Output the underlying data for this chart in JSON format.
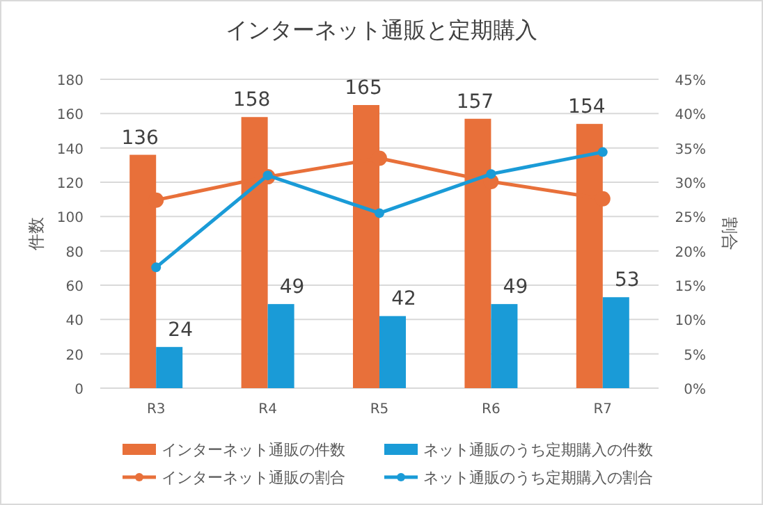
{
  "chart_data": {
    "type": "bar",
    "title": "インターネット通販と定期購入",
    "categories": [
      "R3",
      "R4",
      "R5",
      "R6",
      "R7"
    ],
    "ylabel": "件数",
    "y2label": "割合",
    "ylim": [
      0,
      180
    ],
    "yticks": [
      0,
      20,
      40,
      60,
      80,
      100,
      120,
      140,
      160,
      180
    ],
    "y2lim": [
      0,
      45
    ],
    "y2ticks": [
      {
        "value": 0,
        "label": "0%"
      },
      {
        "value": 5,
        "label": "5%"
      },
      {
        "value": 10,
        "label": "10%"
      },
      {
        "value": 15,
        "label": "15%"
      },
      {
        "value": 20,
        "label": "20%"
      },
      {
        "value": 25,
        "label": "25%"
      },
      {
        "value": 30,
        "label": "30%"
      },
      {
        "value": 35,
        "label": "35%"
      },
      {
        "value": 40,
        "label": "40%"
      },
      {
        "value": 45,
        "label": "45%"
      }
    ],
    "grid": "y",
    "legend": "bottom",
    "marker": "circle",
    "series": [
      {
        "name": "インターネット通販の件数",
        "color": "#e8703a",
        "values": [
          136,
          158,
          165,
          157,
          154
        ],
        "data_labels": true
      },
      {
        "name": "ネット通販のうち定期購入の件数",
        "color": "#1a9bd7",
        "values": [
          24,
          49,
          42,
          49,
          53
        ],
        "data_labels": true
      },
      {
        "name": "インターネット通販の割合",
        "type": "line",
        "axis": "y2",
        "color": "#e8703a",
        "values": [
          27.4,
          30.8,
          33.5,
          30.1,
          27.6
        ]
      },
      {
        "name": "ネット通販のうち定期購入の割合",
        "type": "line",
        "axis": "y2",
        "color": "#1a9bd7",
        "values": [
          17.6,
          31.0,
          25.5,
          31.2,
          34.4
        ]
      }
    ]
  }
}
